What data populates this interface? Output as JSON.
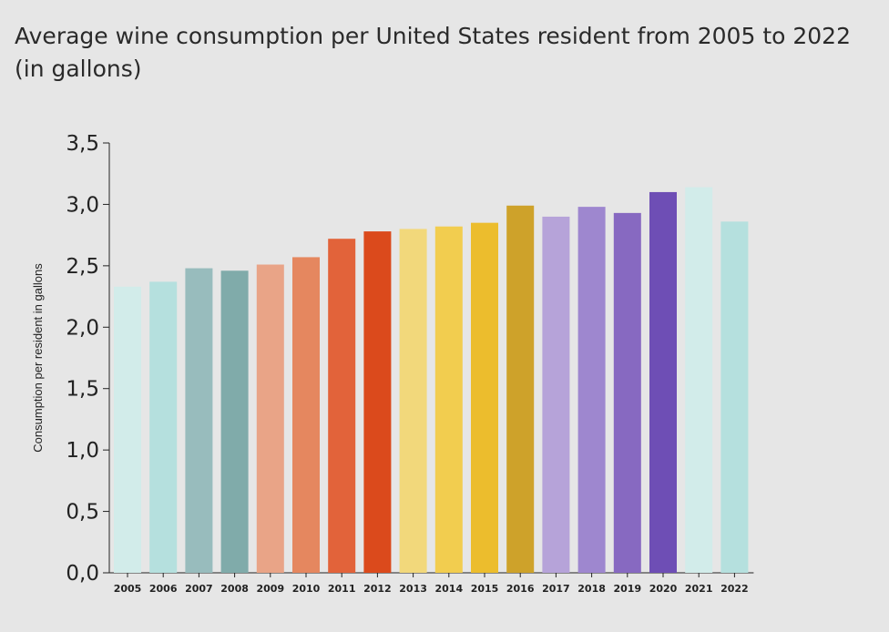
{
  "chart_data": {
    "type": "bar",
    "title": "Average wine consumption per United States resident from 2005 to 2022 (in gallons)",
    "xlabel": "",
    "ylabel": "Consumption per resident in gallons",
    "ylim": [
      0,
      3.5
    ],
    "yticks": [
      "0,0",
      "0,5",
      "1,0",
      "1,5",
      "2,0",
      "2,5",
      "3,0",
      "3,5"
    ],
    "grid": false,
    "categories": [
      "2005",
      "2006",
      "2007",
      "2008",
      "2009",
      "2010",
      "2011",
      "2012",
      "2013",
      "2014",
      "2015",
      "2016",
      "2017",
      "2018",
      "2019",
      "2020",
      "2021",
      "2022"
    ],
    "values": [
      2.33,
      2.37,
      2.48,
      2.46,
      2.51,
      2.57,
      2.72,
      2.78,
      2.8,
      2.82,
      2.85,
      2.99,
      2.9,
      2.98,
      2.93,
      3.1,
      3.14,
      2.86
    ],
    "colors": [
      "#d2ecea",
      "#b5e0de",
      "#98bcbd",
      "#80abaa",
      "#e9a487",
      "#e5875f",
      "#e2633a",
      "#db4a1c",
      "#f2d87b",
      "#f2cd4f",
      "#ecbd2d",
      "#cea22a",
      "#b6a3d9",
      "#9e87cf",
      "#8769c1",
      "#6e4eb5",
      "#d2ecea",
      "#b5e0de"
    ]
  }
}
